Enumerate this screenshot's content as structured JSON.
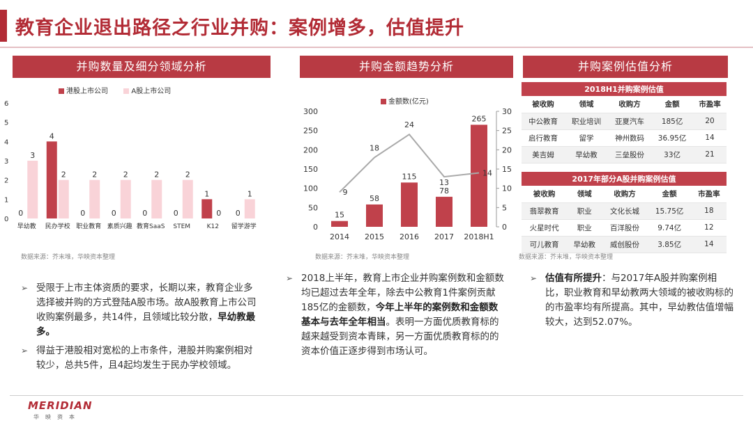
{
  "title": "教育企业退出路径之行业并购：案例增多，估值提升",
  "panels": {
    "p1": "并购数量及细分领域分析",
    "p2": "并购金额趋势分析",
    "p3": "并购案例估值分析"
  },
  "sources": {
    "s1": "数据来源：芥末堆，华映资本整理",
    "s2": "数据来源：芥末堆，华映资本整理",
    "s3": "数据来源：芥末堆，华映资本整理"
  },
  "colors": {
    "dark": "#c0414b",
    "light": "#f9d3d8",
    "line": "#a9a9a9",
    "accent": "#b22b35"
  },
  "chart_data": [
    {
      "type": "bar",
      "legend": [
        "港股上市公司",
        "A股上市公司"
      ],
      "categories": [
        "早幼教",
        "民办学校",
        "职业教育",
        "素质兴趣",
        "教育SaaS",
        "STEM",
        "K12",
        "留学游学"
      ],
      "series": [
        {
          "name": "港股上市公司",
          "values": [
            0,
            4,
            0,
            0,
            0,
            0,
            1,
            0
          ]
        },
        {
          "name": "A股上市公司",
          "values": [
            3,
            2,
            2,
            2,
            2,
            2,
            0,
            1
          ]
        }
      ],
      "yticks": [
        "0",
        "1",
        "2",
        "3",
        "4",
        "5",
        "6"
      ],
      "ylim": [
        0,
        6
      ]
    },
    {
      "type": "bar+line",
      "legend": [
        "金额数(亿元)"
      ],
      "categories": [
        "2014",
        "2015",
        "2016",
        "2017",
        "2018H1"
      ],
      "bars": {
        "name": "金额数(亿元)",
        "values": [
          15,
          58,
          115,
          78,
          265
        ],
        "ylim": [
          0,
          300
        ],
        "yticks": [
          "0",
          "50",
          "100",
          "150",
          "200",
          "250",
          "300"
        ]
      },
      "line": {
        "values": [
          9,
          18,
          24,
          13,
          14
        ],
        "ylim": [
          0,
          30
        ],
        "yticks": [
          "0",
          "5",
          "10",
          "15",
          "20",
          "25",
          "30"
        ]
      }
    }
  ],
  "table1": {
    "caption": "2018H1并购案例估值",
    "headers": [
      "被收购",
      "领域",
      "收购方",
      "金额",
      "市盈率"
    ],
    "rows": [
      [
        "中公教育",
        "职业培训",
        "亚夏汽车",
        "185亿",
        "20"
      ],
      [
        "启行教育",
        "留学",
        "神州数码",
        "36.95亿",
        "14"
      ],
      [
        "美吉姆",
        "早幼教",
        "三垒股份",
        "33亿",
        "21"
      ]
    ]
  },
  "table2": {
    "caption": "2017年部分A股并购案例估值",
    "headers": [
      "被收购",
      "领域",
      "收购方",
      "金额",
      "市盈率"
    ],
    "rows": [
      [
        "翡翠教育",
        "职业",
        "文化长城",
        "15.75亿",
        "18"
      ],
      [
        "火星时代",
        "职业",
        "百洋股份",
        "9.74亿",
        "12"
      ],
      [
        "可儿教育",
        "早幼教",
        "威创股份",
        "3.85亿",
        "14"
      ]
    ]
  },
  "notes1": {
    "a1": "受限于上市主体资质的要求，长期以来，教育企业多选择被并购的方式登陆A股市场。故A股教育上市公司收购案例最多，共14件，且领域比较分散，",
    "a2": "早幼教最多。",
    "b1": "得益于港股相对宽松的上市条件，港股并购案例相对较少，总共5件，且4起均发生于民办学校领域。"
  },
  "notes2": {
    "a1": "2018上半年，教育上市企业并购案例数和金额数均已超过去年全年，除去中公教育1件案例贡献185亿的金额数，",
    "a2": "今年上半年的案例数和金额数基本与去年全年相当",
    "a3": "。表明一方面优质教育标的越来越受到资本青睐，另一方面优质教育标的的资本价值正逐步得到市场认可。"
  },
  "notes3": {
    "a1": "估值有所提升",
    "a2": "：与2017年A股并购案例相比，职业教育和早幼教两大领域的被收购标的的市盈率均有所提高。其中，早幼教估值增幅较大，达到52.07%。"
  },
  "logo": {
    "name": "MERIDIAN",
    "sub": "华映资本"
  }
}
